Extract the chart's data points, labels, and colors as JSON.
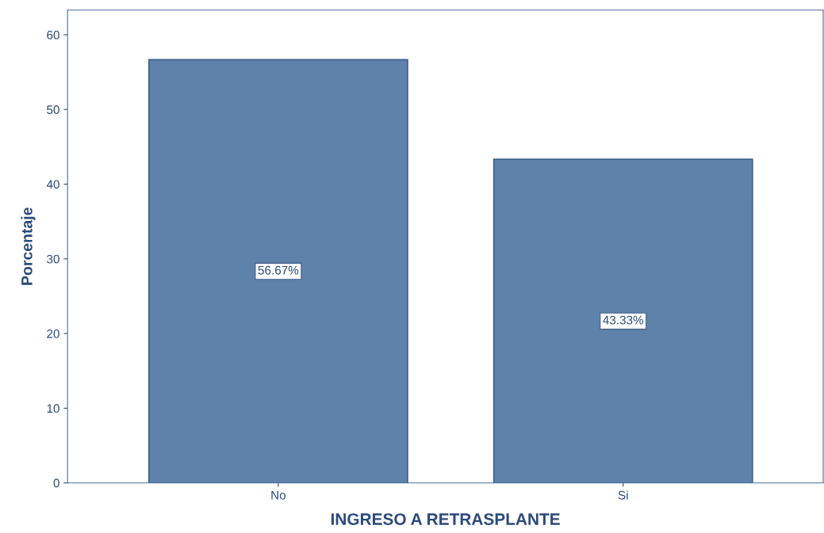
{
  "chart_data": {
    "type": "bar",
    "xlabel": "INGRESO A RETRASPLANTE",
    "ylabel": "Porcentaje",
    "categories": [
      "No",
      "Si"
    ],
    "values": [
      56.67,
      43.33
    ],
    "value_labels": [
      "56.67%",
      "43.33%"
    ],
    "color": "#5f82aa",
    "ylim": [
      0,
      63.3
    ],
    "yticks": [
      0,
      10,
      20,
      30,
      40,
      50,
      60
    ],
    "grid": false,
    "legend": false
  }
}
